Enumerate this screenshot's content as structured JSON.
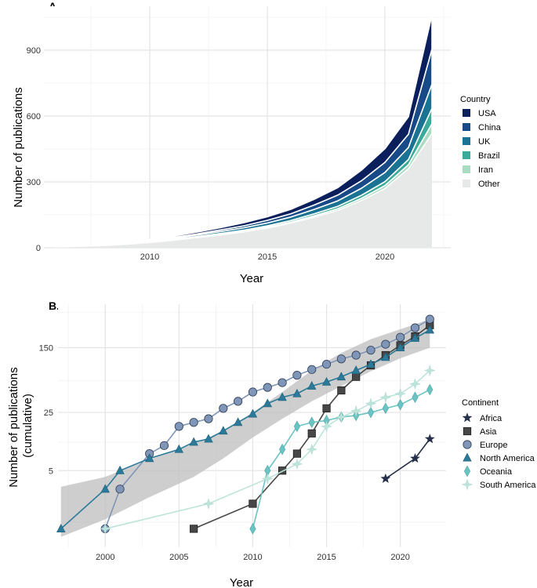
{
  "chart_data": [
    {
      "type": "area",
      "panel": "A.",
      "xlabel": "Year",
      "ylabel": "Number of publications",
      "xlim": [
        2005.5,
        2022.8
      ],
      "ylim": [
        0,
        1100
      ],
      "xticks": [
        2010,
        2015,
        2020
      ],
      "yticks": [
        0,
        300,
        600,
        900
      ],
      "legend_title": "Country",
      "legend_position": "right",
      "x": [
        2006,
        2007,
        2008,
        2009,
        2010,
        2011,
        2012,
        2013,
        2014,
        2015,
        2016,
        2017,
        2018,
        2019,
        2020,
        2021,
        2022
      ],
      "series": [
        {
          "name": "USA",
          "color": "#0b1f5c",
          "values": [
            1,
            2,
            2,
            3,
            4,
            6,
            8,
            10,
            14,
            16,
            20,
            26,
            34,
            48,
            62,
            80,
            155
          ]
        },
        {
          "name": "China",
          "color": "#174a86",
          "values": [
            1,
            1,
            1,
            2,
            3,
            4,
            5,
            7,
            9,
            12,
            15,
            20,
            26,
            34,
            46,
            60,
            160
          ]
        },
        {
          "name": "UK",
          "color": "#1b7393",
          "values": [
            1,
            1,
            2,
            3,
            4,
            5,
            7,
            9,
            11,
            13,
            16,
            20,
            25,
            32,
            42,
            55,
            110
          ]
        },
        {
          "name": "Brazil",
          "color": "#3aaa9a",
          "values": [
            0,
            1,
            1,
            1,
            2,
            2,
            3,
            4,
            5,
            6,
            7,
            9,
            11,
            14,
            18,
            24,
            70
          ]
        },
        {
          "name": "Iran",
          "color": "#a8dcc0",
          "values": [
            0,
            0,
            1,
            1,
            1,
            2,
            2,
            3,
            3,
            4,
            5,
            6,
            8,
            10,
            13,
            18,
            45
          ]
        },
        {
          "name": "Other",
          "color": "#e7e9e8",
          "values": [
            4,
            7,
            10,
            16,
            24,
            34,
            46,
            58,
            72,
            90,
            112,
            140,
            170,
            215,
            270,
            360,
            520
          ]
        }
      ]
    },
    {
      "type": "line",
      "panel": "B.",
      "xlabel": "Year",
      "ylabel": "Number of publications\n(cumulative)",
      "yscale": "log",
      "xlim": [
        1996.8,
        2023.1
      ],
      "ylim": [
        0.6,
        500
      ],
      "xticks": [
        2000,
        2005,
        2010,
        2015,
        2020
      ],
      "yticks": [
        5,
        25,
        150
      ],
      "legend_title": "Continent",
      "legend_position": "right",
      "band": {
        "label": "",
        "x": [
          1997,
          2000,
          2003,
          2006,
          2008,
          2010,
          2012,
          2014,
          2016,
          2018,
          2020,
          2022
        ],
        "lower": [
          0.8,
          1.3,
          2.4,
          4.2,
          7,
          12.5,
          21,
          34,
          52,
          78,
          112,
          150
        ],
        "upper": [
          3.2,
          4.2,
          6.8,
          10.5,
          15,
          25,
          44,
          80,
          130,
          190,
          250,
          330
        ]
      },
      "series": [
        {
          "name": "Africa",
          "marker": "star",
          "color": "#27304a",
          "x": [
            2019,
            2021,
            2022
          ],
          "values": [
            4,
            7,
            12
          ]
        },
        {
          "name": "Asia",
          "marker": "square",
          "color": "#474747",
          "x": [
            2006,
            2010,
            2012,
            2013,
            2014,
            2015,
            2016,
            2017,
            2018,
            2019,
            2020,
            2021,
            2022
          ],
          "values": [
            1,
            2,
            5,
            8,
            14,
            28,
            46,
            67,
            92,
            122,
            160,
            205,
            280
          ]
        },
        {
          "name": "Europe",
          "marker": "circle",
          "color": "#8096b8",
          "x": [
            2000,
            2001,
            2003,
            2004,
            2005,
            2006,
            2007,
            2008,
            2009,
            2010,
            2011,
            2012,
            2013,
            2014,
            2015,
            2016,
            2017,
            2018,
            2019,
            2020,
            2021,
            2022
          ],
          "values": [
            1,
            3,
            8,
            10,
            17,
            19,
            21,
            28,
            34,
            44,
            50,
            57,
            70,
            82,
            95,
            110,
            122,
            140,
            165,
            200,
            260,
            330
          ]
        },
        {
          "name": "North America",
          "marker": "triangle",
          "color": "#2b7a99",
          "x": [
            1997,
            2000,
            2001,
            2003,
            2005,
            2006,
            2007,
            2008,
            2009,
            2010,
            2011,
            2012,
            2013,
            2014,
            2015,
            2016,
            2017,
            2018,
            2019,
            2020,
            2021,
            2022
          ],
          "values": [
            1,
            3,
            5,
            7,
            9,
            11,
            12,
            15,
            19,
            24,
            32,
            38,
            42,
            52,
            58,
            67,
            80,
            95,
            115,
            150,
            195,
            245
          ]
        },
        {
          "name": "Oceania",
          "marker": "diamond",
          "color": "#6cc3c3",
          "x": [
            2010,
            2011,
            2012,
            2013,
            2014,
            2015,
            2016,
            2017,
            2018,
            2019,
            2020,
            2021,
            2022
          ],
          "values": [
            1,
            5,
            9,
            17,
            19,
            20,
            22,
            23,
            25,
            28,
            31,
            38,
            47
          ]
        },
        {
          "name": "South America",
          "marker": "cross-star",
          "color": "#bde4da",
          "x": [
            2000,
            2007,
            2011,
            2013,
            2014,
            2015,
            2016,
            2017,
            2018,
            2019,
            2020,
            2021,
            2022
          ],
          "values": [
            1,
            2,
            4,
            6,
            9,
            17,
            22,
            26,
            32,
            38,
            42,
            55,
            80
          ]
        }
      ]
    }
  ]
}
